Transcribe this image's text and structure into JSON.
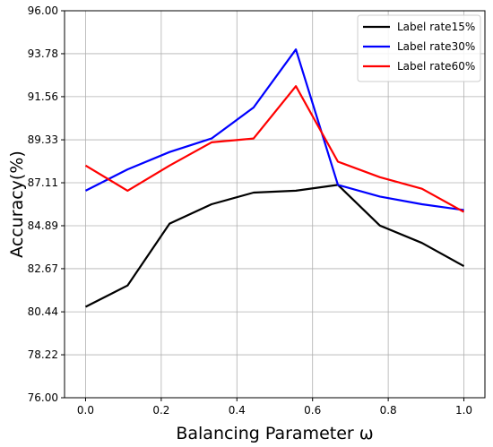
{
  "chart_data": {
    "type": "line",
    "title": "",
    "xlabel": "Balancing Parameter ω",
    "ylabel": "Accuracy(%)",
    "xlim": [
      -0.0556,
      1.0556
    ],
    "ylim": [
      76.0,
      96.0
    ],
    "xticks": [
      0.0,
      0.2,
      0.4,
      0.6,
      0.8,
      1.0
    ],
    "xtick_labels": [
      "0.0",
      "0.2",
      "0.4",
      "0.6",
      "0.8",
      "1.0"
    ],
    "yticks": [
      76.0,
      78.22,
      80.44,
      82.67,
      84.89,
      87.11,
      89.33,
      91.56,
      93.78,
      96.0
    ],
    "ytick_labels": [
      "76.00",
      "78.22",
      "80.44",
      "82.67",
      "84.89",
      "87.11",
      "89.33",
      "91.56",
      "93.78",
      "96.00"
    ],
    "grid": true,
    "legend_position": "top-right",
    "x": [
      0.0,
      0.111,
      0.222,
      0.333,
      0.444,
      0.556,
      0.667,
      0.778,
      0.889,
      1.0
    ],
    "series": [
      {
        "name": "Label rate15%",
        "color": "#000000",
        "values": [
          80.7,
          81.8,
          85.0,
          86.0,
          86.6,
          86.7,
          87.0,
          84.9,
          84.0,
          82.8
        ]
      },
      {
        "name": "Label rate30%",
        "color": "#0000ff",
        "values": [
          86.7,
          87.8,
          88.7,
          89.4,
          91.0,
          94.0,
          87.0,
          86.4,
          86.0,
          85.7
        ]
      },
      {
        "name": "Label rate60%",
        "color": "#ff0000",
        "values": [
          88.0,
          86.7,
          88.0,
          89.2,
          89.4,
          92.1,
          88.2,
          87.4,
          86.8,
          85.6
        ]
      }
    ]
  }
}
